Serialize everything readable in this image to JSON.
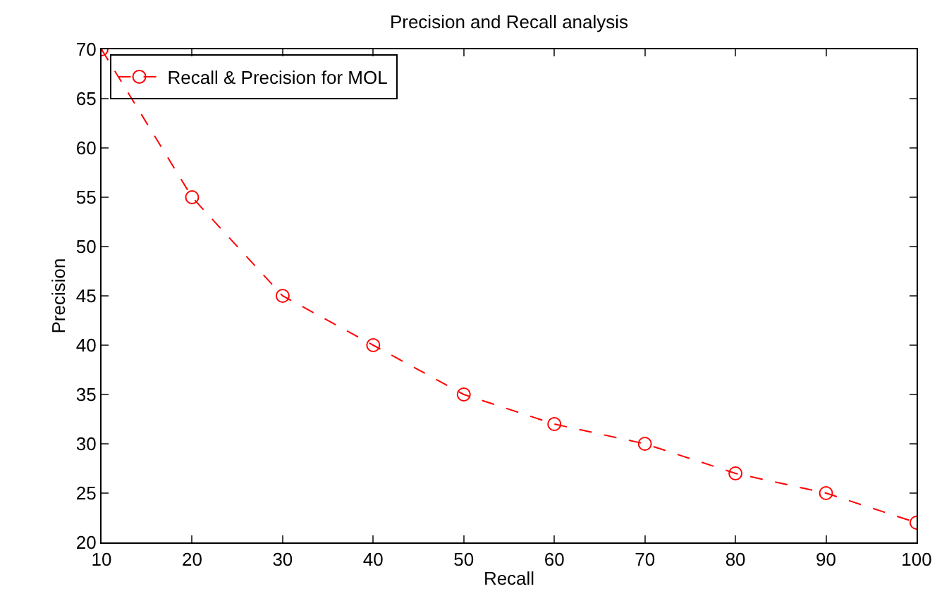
{
  "chart_data": {
    "type": "line",
    "title": "Precision and Recall analysis",
    "xlabel": "Recall",
    "ylabel": "Precision",
    "x": [
      10,
      20,
      30,
      40,
      50,
      60,
      70,
      80,
      90,
      100
    ],
    "series": [
      {
        "name": "Recall & Precision for MOL",
        "color": "#ff0000",
        "values": [
          70,
          55,
          45,
          40,
          35,
          32,
          30,
          27,
          25,
          22
        ]
      }
    ],
    "xlim": [
      10,
      100
    ],
    "xticks": [
      10,
      20,
      30,
      40,
      50,
      60,
      70,
      80,
      90,
      100
    ],
    "ylim": [
      20,
      70
    ],
    "yticks": [
      20,
      25,
      30,
      35,
      40,
      45,
      50,
      55,
      60,
      65,
      70
    ],
    "legend": "top left",
    "marker": "circle",
    "line_style": "dashed"
  }
}
